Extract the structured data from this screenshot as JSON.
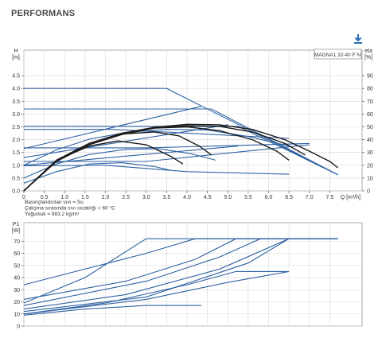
{
  "page": {
    "title": "PERFORMANS",
    "download_icon": "download-icon",
    "colors": {
      "title": "#4a4a4a",
      "blue": "#2e62a3",
      "black": "#1a1a1a",
      "grid": "#d8d8d8",
      "download": "#2a6fba"
    }
  },
  "chart_data": [
    {
      "type": "line",
      "title": "",
      "model_label": "MAGNA1 32-40 F N",
      "xlabel": "Q [m³/h]",
      "ylabel_left": "H\n[m]",
      "ylabel_right": "eta\n[%]",
      "xlim": [
        0,
        8
      ],
      "ylim": [
        0,
        5
      ],
      "y2lim": [
        0,
        100
      ],
      "x_ticks": [
        "0",
        "0.5",
        "1.0",
        "1.5",
        "2.0",
        "2.5",
        "3.0",
        "3.5",
        "4.0",
        "4.5",
        "5.0",
        "5.5",
        "6.0",
        "6.5",
        "7.0",
        "7.5",
        "Q [m³/h]"
      ],
      "y_ticks": [
        "0.0",
        "0.5",
        "1.0",
        "1.5",
        "2.0",
        "2.5",
        "3.0",
        "3.5",
        "4.0",
        "4.5"
      ],
      "y2_ticks": [
        "0",
        "10",
        "20",
        "30",
        "40",
        "50",
        "60",
        "70",
        "80",
        "90"
      ],
      "grid": true,
      "notes": [
        "Basınçlandırılan sıvı = Su",
        "Çalışma sırasında sıvı sıcaklığı = 60 °C",
        "Yoğunluk = 983.2 kg/m³"
      ],
      "series": [
        {
          "color": "blue",
          "points": [
            [
              0,
              4.0
            ],
            [
              3.5,
              4.0
            ],
            [
              7.7,
              0.63
            ]
          ]
        },
        {
          "color": "blue",
          "points": [
            [
              0,
              3.2
            ],
            [
              4.6,
              3.2
            ],
            [
              7.7,
              0.63
            ]
          ]
        },
        {
          "color": "blue",
          "points": [
            [
              0,
              2.52
            ],
            [
              5.25,
              2.52
            ],
            [
              7.7,
              0.63
            ]
          ]
        },
        {
          "color": "blue",
          "points": [
            [
              0,
              1.65
            ],
            [
              4.35,
              3.3
            ]
          ]
        },
        {
          "color": "blue",
          "points": [
            [
              0,
              1.3
            ],
            [
              5.0,
              2.58
            ]
          ]
        },
        {
          "color": "blue",
          "points": [
            [
              0,
              1.0
            ],
            [
              5.25,
              1.75
            ]
          ]
        },
        {
          "color": "blue",
          "points": [
            [
              0,
              2.4
            ],
            [
              2.2,
              2.4
            ],
            [
              6.5,
              2.05
            ]
          ]
        },
        {
          "color": "blue",
          "points": [
            [
              0,
              1.68
            ],
            [
              3.0,
              1.68
            ],
            [
              7.0,
              1.85
            ]
          ]
        },
        {
          "color": "blue",
          "points": [
            [
              0,
              1.15
            ],
            [
              3.0,
              1.15
            ],
            [
              7.0,
              1.8
            ]
          ]
        },
        {
          "color": "blue",
          "points": [
            [
              0,
              0.98
            ],
            [
              2.0,
              1.0
            ],
            [
              4.0,
              0.75
            ],
            [
              6.5,
              0.65
            ]
          ]
        },
        {
          "color": "blue",
          "points": [
            [
              0.0,
              1.0
            ],
            [
              0.8,
              1.6
            ],
            [
              1.6,
              2.02
            ],
            [
              2.5,
              2.28
            ],
            [
              3.5,
              2.4
            ],
            [
              4.5,
              2.38
            ],
            [
              5.5,
              2.12
            ],
            [
              6.5,
              1.75
            ]
          ]
        },
        {
          "color": "blue",
          "points": [
            [
              0.0,
              0.5
            ],
            [
              0.8,
              1.05
            ],
            [
              1.6,
              1.42
            ],
            [
              2.5,
              1.62
            ],
            [
              3.3,
              1.65
            ],
            [
              4.1,
              1.45
            ],
            [
              4.7,
              1.2
            ]
          ]
        },
        {
          "color": "blue",
          "points": [
            [
              0.0,
              0.3
            ],
            [
              0.8,
              0.75
            ],
            [
              1.6,
              1.05
            ],
            [
              2.4,
              1.1
            ],
            [
              3.2,
              0.95
            ],
            [
              3.6,
              0.8
            ]
          ]
        },
        {
          "color": "black",
          "points": [
            [
              0.0,
              0.0
            ],
            [
              0.8,
              1.2
            ],
            [
              1.6,
              1.85
            ],
            [
              2.4,
              2.25
            ],
            [
              3.2,
              2.48
            ],
            [
              4.0,
              2.6
            ],
            [
              4.8,
              2.58
            ],
            [
              5.6,
              2.4
            ],
            [
              6.4,
              2.0
            ],
            [
              7.0,
              1.55
            ],
            [
              7.5,
              1.15
            ],
            [
              7.7,
              0.9
            ]
          ]
        },
        {
          "color": "black",
          "points": [
            [
              0.0,
              0.0
            ],
            [
              0.8,
              1.2
            ],
            [
              1.6,
              1.85
            ],
            [
              2.4,
              2.25
            ],
            [
              3.2,
              2.45
            ],
            [
              4.0,
              2.5
            ],
            [
              4.8,
              2.35
            ],
            [
              5.6,
              2.0
            ],
            [
              6.2,
              1.55
            ],
            [
              6.5,
              1.2
            ]
          ]
        },
        {
          "color": "black",
          "points": [
            [
              0.0,
              0.0
            ],
            [
              0.8,
              1.2
            ],
            [
              1.6,
              1.85
            ],
            [
              2.4,
              2.22
            ],
            [
              3.2,
              2.3
            ],
            [
              3.8,
              2.15
            ],
            [
              4.3,
              1.75
            ],
            [
              4.6,
              1.4
            ]
          ]
        },
        {
          "color": "black",
          "points": [
            [
              0.0,
              0.0
            ],
            [
              0.8,
              1.2
            ],
            [
              1.6,
              1.75
            ],
            [
              2.3,
              1.95
            ],
            [
              3.0,
              1.8
            ],
            [
              3.6,
              1.35
            ],
            [
              3.9,
              1.05
            ]
          ]
        },
        {
          "color": "black",
          "points": [
            [
              0.0,
              0.0
            ],
            [
              0.8,
              1.15
            ],
            [
              1.6,
              1.8
            ],
            [
              2.4,
              2.2
            ],
            [
              3.2,
              2.45
            ],
            [
              4.0,
              2.55
            ],
            [
              4.8,
              2.52
            ],
            [
              5.6,
              2.3
            ],
            [
              6.4,
              1.85
            ],
            [
              6.9,
              1.4
            ]
          ]
        }
      ]
    },
    {
      "type": "line",
      "title": "",
      "ylabel": "P1\n[W]",
      "xlim": [
        0,
        8
      ],
      "ylim": [
        0,
        80
      ],
      "y_ticks": [
        "0",
        "10",
        "20",
        "30",
        "40",
        "50",
        "60",
        "70"
      ],
      "grid": true,
      "series": [
        {
          "color": "blue",
          "points": [
            [
              0,
              34
            ],
            [
              3.0,
              60
            ],
            [
              4.2,
              72
            ],
            [
              7.7,
              72
            ]
          ]
        },
        {
          "color": "blue",
          "points": [
            [
              0,
              22
            ],
            [
              2.5,
              37
            ],
            [
              4.2,
              55
            ],
            [
              5.2,
              72
            ],
            [
              7.7,
              72
            ]
          ]
        },
        {
          "color": "blue",
          "points": [
            [
              0,
              17
            ],
            [
              3.0,
              37
            ],
            [
              4.8,
              57
            ],
            [
              5.8,
              72
            ],
            [
              7.7,
              72
            ]
          ]
        },
        {
          "color": "blue",
          "points": [
            [
              0,
              14
            ],
            [
              2.5,
              26
            ],
            [
              4.8,
              47
            ],
            [
              6.5,
              72
            ],
            [
              7.7,
              72
            ]
          ]
        },
        {
          "color": "blue",
          "points": [
            [
              0,
              12
            ],
            [
              3.0,
              24
            ],
            [
              5.5,
              52
            ],
            [
              6.5,
              72
            ],
            [
              7.7,
              72
            ]
          ]
        },
        {
          "color": "blue",
          "points": [
            [
              0,
              10
            ],
            [
              3.0,
              22
            ],
            [
              5.0,
              36
            ],
            [
              6.5,
              45
            ]
          ]
        },
        {
          "color": "blue",
          "points": [
            [
              0,
              10
            ],
            [
              2.0,
              19
            ],
            [
              4.0,
              34
            ],
            [
              5.2,
              45
            ],
            [
              6.5,
              45
            ]
          ]
        },
        {
          "color": "blue",
          "points": [
            [
              0,
              9
            ],
            [
              1.5,
              14
            ],
            [
              3.0,
              17
            ],
            [
              4.35,
              17
            ]
          ]
        },
        {
          "color": "blue",
          "points": [
            [
              0,
              19
            ],
            [
              1.5,
              40
            ],
            [
              2.9,
              70
            ],
            [
              3.0,
              72
            ],
            [
              7.7,
              72
            ]
          ]
        }
      ]
    }
  ]
}
